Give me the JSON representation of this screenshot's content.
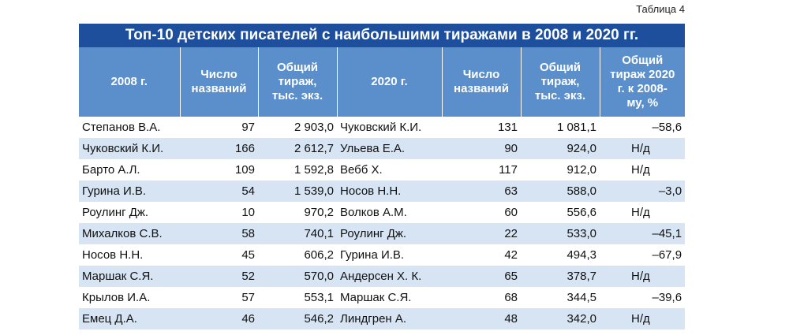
{
  "label": "Таблица 4",
  "table": {
    "title": "Топ-10 детских писателей с наибольшими тиражами в 2008 и 2020 гг.",
    "header": [
      "2008 г.",
      "Число названий",
      "Общий тираж, тыс. экз.",
      "2020 г.",
      "Число названий",
      "Общий тираж, тыс. экз.",
      "Общий тираж 2020 г. к 2008-му, %"
    ],
    "rows": [
      [
        "Степанов В.А.",
        "97",
        "2 903,0",
        "Чуковский К.И.",
        "131",
        "1 081,1",
        "–58,6"
      ],
      [
        "Чуковский К.И.",
        "166",
        "2 612,7",
        "Ульева Е.А.",
        "90",
        "924,0",
        "Н/д"
      ],
      [
        "Барто А.Л.",
        "109",
        "1 592,8",
        "Вебб Х.",
        "117",
        "912,0",
        "Н/д"
      ],
      [
        "Гурина И.В.",
        "54",
        "1 539,0",
        "Носов Н.Н.",
        "63",
        "588,0",
        "–3,0"
      ],
      [
        "Роулинг Дж.",
        "10",
        "970,2",
        "Волков А.М.",
        "60",
        "556,6",
        "Н/д"
      ],
      [
        "Михалков С.В.",
        "58",
        "740,1",
        "Роулинг Дж.",
        "22",
        "533,0",
        "–45,1"
      ],
      [
        "Носов Н.Н.",
        "45",
        "606,2",
        "Гурина И.В.",
        "42",
        "494,3",
        "–67,9"
      ],
      [
        "Маршак С.Я.",
        "52",
        "570,0",
        "Андерсен Х. К.",
        "65",
        "378,7",
        "Н/д"
      ],
      [
        "Крылов И.А.",
        "57",
        "553,1",
        "Маршак С.Я.",
        "68",
        "344,5",
        "–39,6"
      ],
      [
        "Емец Д.А.",
        "46",
        "546,2",
        "Линдгрен А.",
        "48",
        "342,0",
        "Н/д"
      ]
    ]
  }
}
